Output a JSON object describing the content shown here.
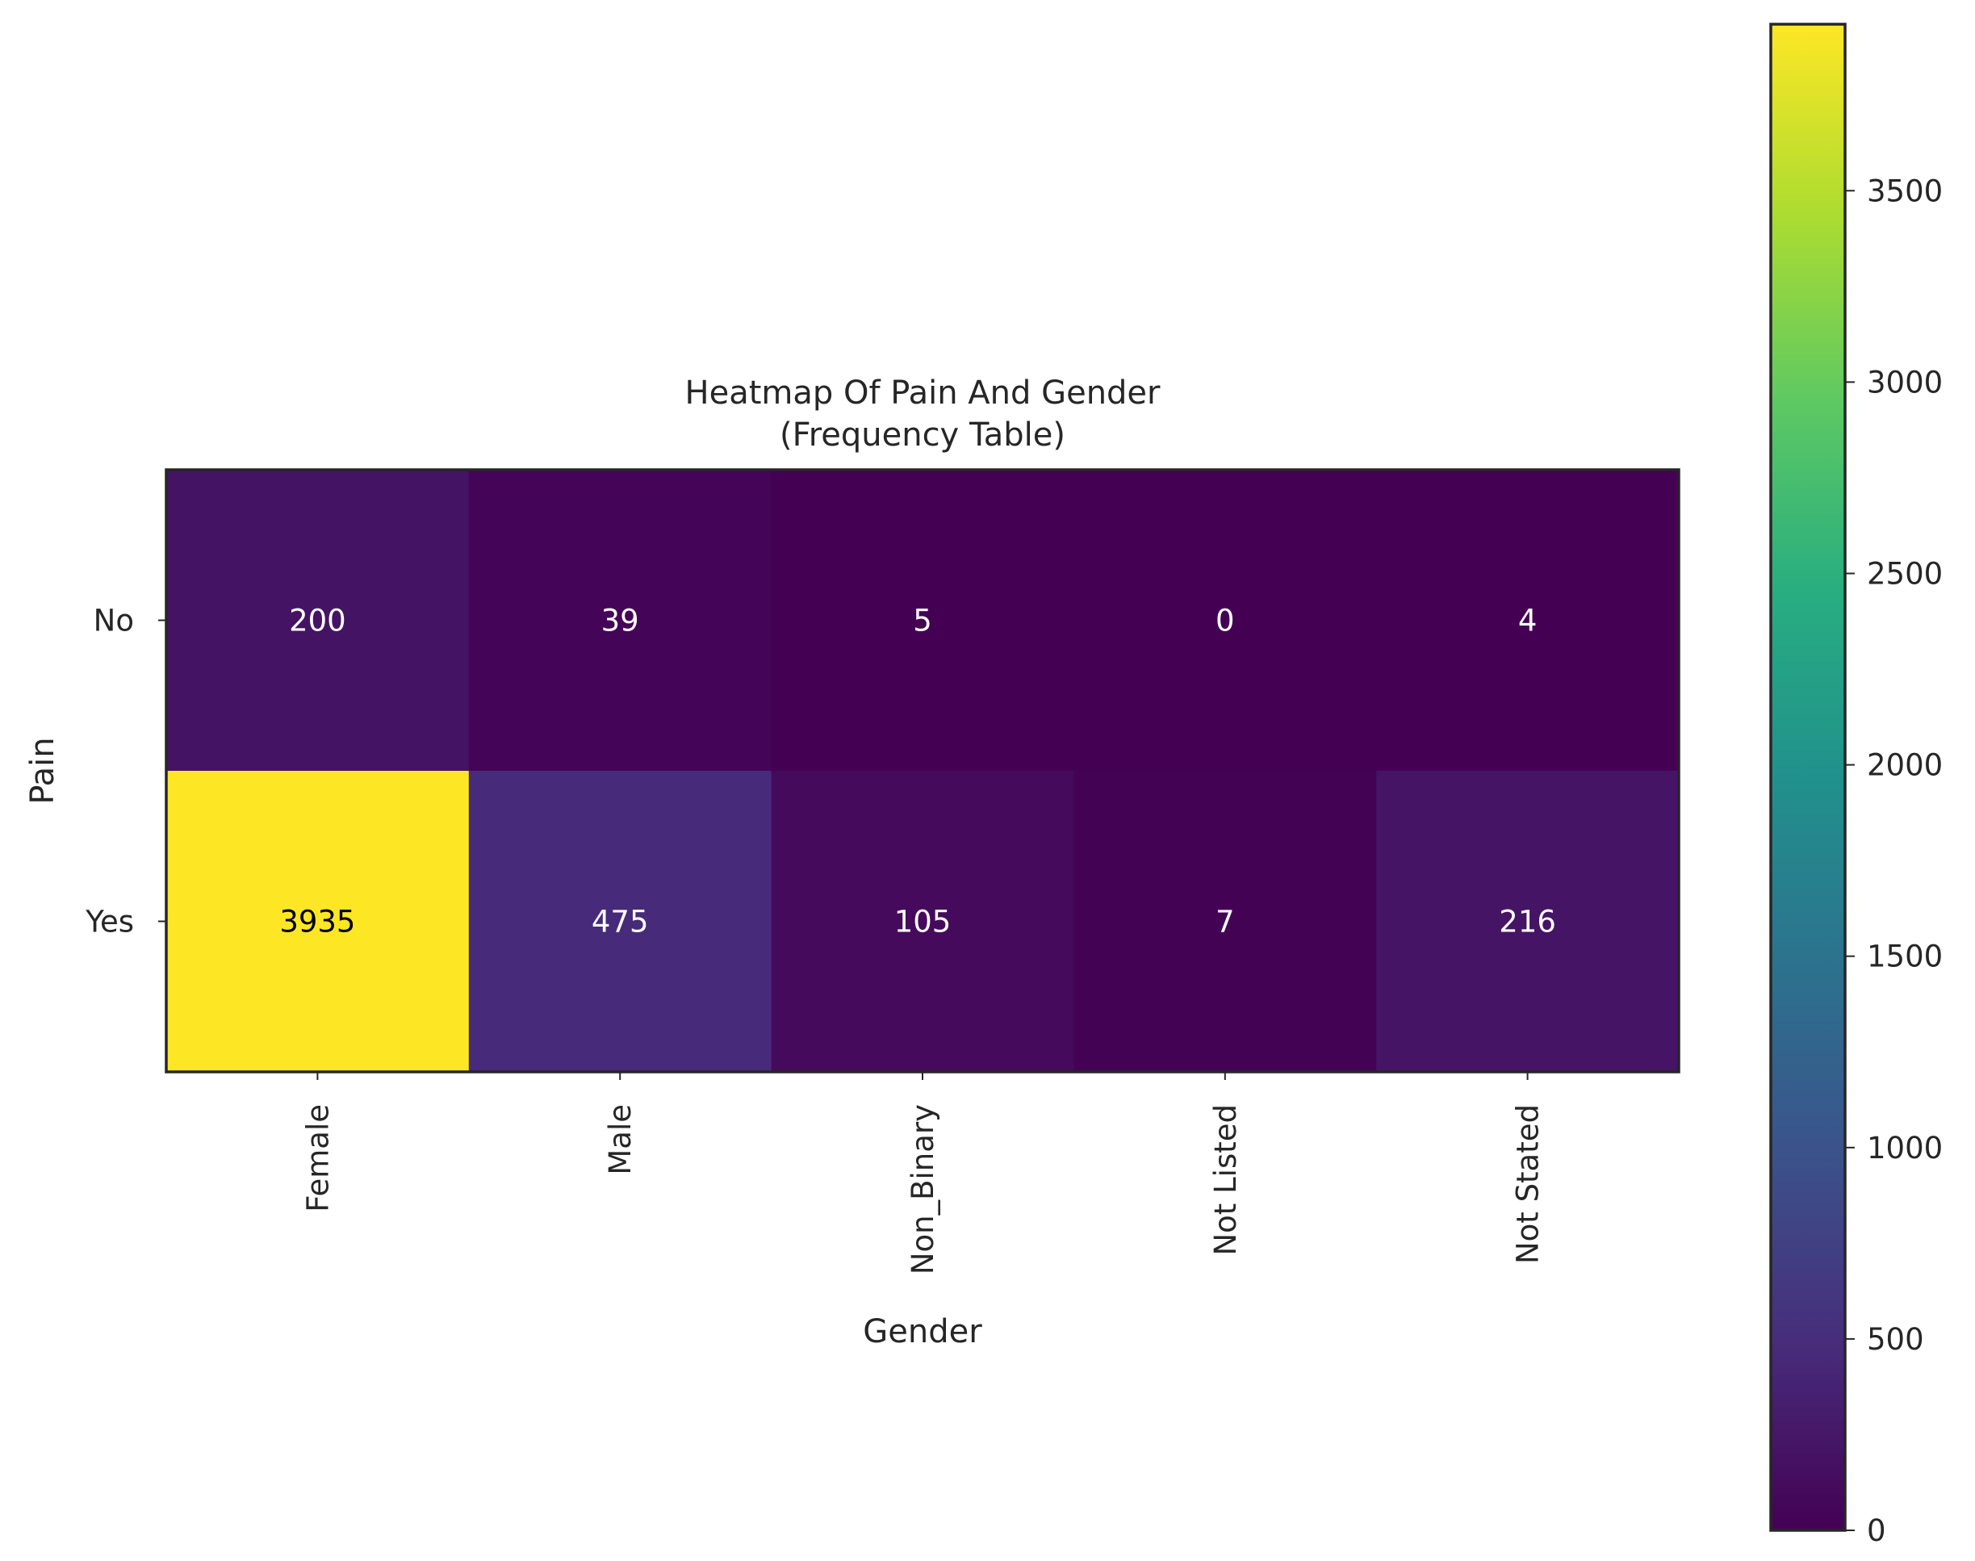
{
  "chart_data": {
    "type": "heatmap",
    "title": "Heatmap Of Pain And Gender",
    "subtitle": "(Frequency Table)",
    "xlabel": "Gender",
    "ylabel": "Pain",
    "x_categories": [
      "Female",
      "Male",
      "Non_Binary",
      "Not Listed",
      "Not Stated"
    ],
    "y_categories": [
      "No",
      "Yes"
    ],
    "values": [
      [
        200,
        39,
        5,
        0,
        4
      ],
      [
        3935,
        475,
        105,
        7,
        216
      ]
    ],
    "colormap": "viridis",
    "colorbar": {
      "range": [
        0,
        3935
      ],
      "ticks": [
        0,
        500,
        1000,
        1500,
        2000,
        2500,
        3000,
        3500
      ]
    },
    "annotation_colors": {
      "light": "#ffffff",
      "dark": "#000000"
    }
  }
}
